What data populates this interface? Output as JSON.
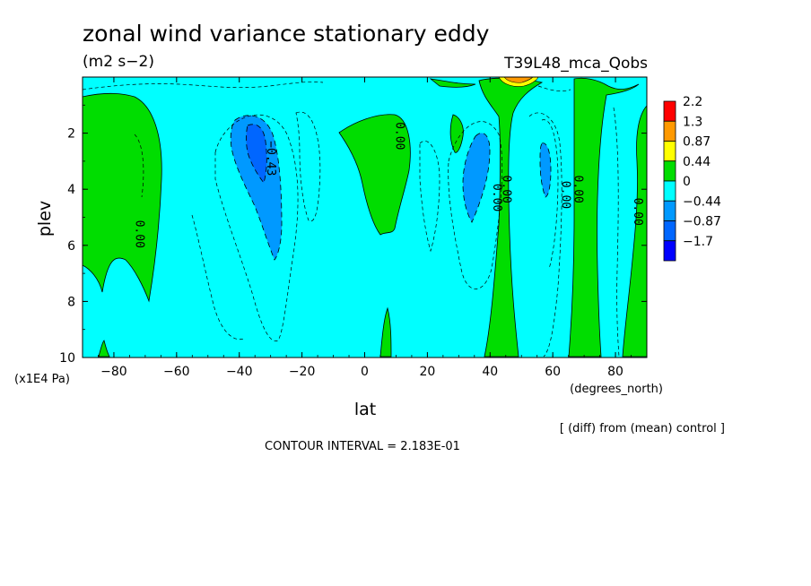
{
  "chart_data": {
    "type": "heatmap",
    "title": "zonal wind variance stationary eddy",
    "units": "(m2 s−2)",
    "experiment": "T39L48_mca_Qobs",
    "xlabel": "lat",
    "x_units": "(degrees_north)",
    "ylabel": "plev",
    "y_units": "(x1E4 Pa)",
    "xlim": [
      -90,
      90
    ],
    "ylim": [
      0,
      10
    ],
    "y_inverted": true,
    "x_ticks": [
      -80,
      -60,
      -40,
      -20,
      0,
      20,
      40,
      60,
      80
    ],
    "x_tick_labels": [
      "−80",
      "−60",
      "−40",
      "−20",
      "0",
      "20",
      "40",
      "60",
      "80"
    ],
    "y_ticks": [
      2,
      4,
      6,
      8,
      10
    ],
    "colorbar": {
      "labels": [
        "2.2",
        "1.3",
        "0.87",
        "0.44",
        "0",
        "−0.44",
        "−0.87",
        "−1.7"
      ],
      "colors": [
        "#ff0000",
        "#ff9900",
        "#ffff00",
        "#00dd00",
        "#00ffff",
        "#0099ff",
        "#0066ff",
        "#0000ff"
      ]
    },
    "contour_labels": [
      {
        "text": "0.00",
        "lat": 10,
        "plev": 2.1
      },
      {
        "text": "−0.43",
        "lat": -31,
        "plev": 2.9
      },
      {
        "text": "0.00",
        "lat": -73,
        "plev": 5.6
      },
      {
        "text": "0.00",
        "lat": 41,
        "plev": 4.3
      },
      {
        "text": "0.00",
        "lat": 44,
        "plev": 4.0
      },
      {
        "text": "0.00",
        "lat": 63,
        "plev": 4.2
      },
      {
        "text": "0.00",
        "lat": 67,
        "plev": 4.0
      },
      {
        "text": "0.00",
        "lat": 86,
        "plev": 4.8
      }
    ],
    "regions": [
      {
        "category": "0 to 0.44",
        "lat": [
          -90,
          -68
        ],
        "plev": [
          0.6,
          8.0
        ]
      },
      {
        "category": "0 to 0.44",
        "lat": [
          -8,
          15
        ],
        "plev": [
          1.0,
          5.6
        ]
      },
      {
        "category": "-0.87 to -0.44",
        "lat": [
          -40,
          -27
        ],
        "plev": [
          1.5,
          6.5
        ]
      },
      {
        "category": "-1.7 to -0.87",
        "lat": [
          -36,
          -31
        ],
        "plev": [
          1.8,
          3.8
        ]
      },
      {
        "category": "-0.87 to -0.44",
        "lat": [
          30,
          38
        ],
        "plev": [
          2.0,
          5.3
        ]
      },
      {
        "category": "0 to 0.44",
        "lat": [
          41,
          45
        ],
        "plev": [
          1.0,
          10.0
        ]
      },
      {
        "category": "-0.87 to -0.44",
        "lat": [
          54,
          58
        ],
        "plev": [
          2.5,
          4.2
        ]
      },
      {
        "category": "0 to 0.44",
        "lat": [
          61,
          69
        ],
        "plev": [
          0.2,
          10.0
        ]
      },
      {
        "category": "0.44 to 2.2",
        "lat": [
          44,
          52
        ],
        "plev": [
          0,
          0.3
        ]
      },
      {
        "category": "0 to 0.44",
        "lat": [
          79,
          90
        ],
        "plev": [
          0.8,
          10.0
        ]
      }
    ]
  },
  "footer": {
    "contour_interval": "CONTOUR INTERVAL = 2.183E-01",
    "note": "[ (diff) from (mean) control ]"
  }
}
